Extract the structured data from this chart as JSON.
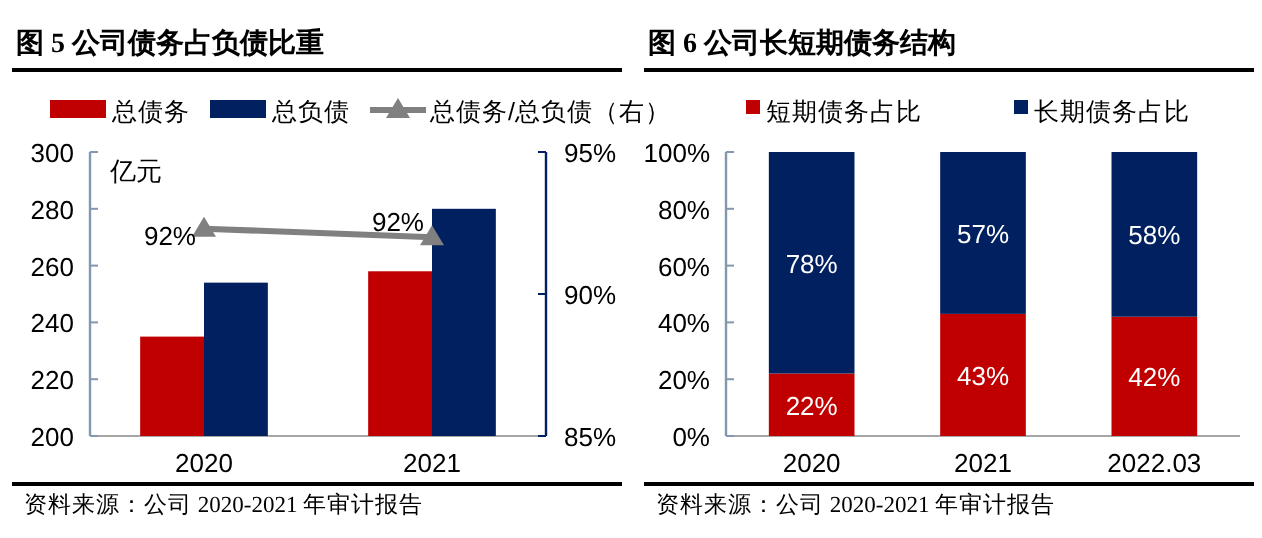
{
  "chart_data": [
    {
      "type": "bar",
      "title": "图 5 公司债务占负债比重",
      "ylabel": "亿元",
      "categories": [
        "2020",
        "2021"
      ],
      "series": [
        {
          "name": "总债务",
          "color": "#c00000",
          "values": [
            235,
            258
          ]
        },
        {
          "name": "总负债",
          "color": "#002060",
          "values": [
            254,
            280
          ]
        },
        {
          "name": "总债务/总负债（右）",
          "type": "line",
          "axis": "y2",
          "color": "#808080",
          "marker": "triangle",
          "values": [
            92.3,
            92.0
          ],
          "value_labels": [
            "92%",
            "92%"
          ]
        }
      ],
      "ylim": [
        200,
        300
      ],
      "yticks": [
        200,
        220,
        240,
        260,
        280,
        300
      ],
      "y2lim": [
        85,
        95
      ],
      "y2ticks": [
        {
          "value": 85,
          "label": "85%"
        },
        {
          "value": 90,
          "label": "90%"
        },
        {
          "value": 95,
          "label": "95%"
        }
      ],
      "legend": "top",
      "annotations": [
        "资料来源：公司 2020-2021 年审计报告"
      ]
    },
    {
      "type": "bar",
      "stacked": true,
      "title": "图 6 公司长短期债务结构",
      "categories": [
        "2020",
        "2021",
        "2022.03"
      ],
      "series": [
        {
          "name": "短期债务占比",
          "color": "#c00000",
          "values": [
            22,
            43,
            42
          ],
          "value_labels": [
            "22%",
            "43%",
            "42%"
          ]
        },
        {
          "name": "长期债务占比",
          "color": "#002060",
          "values": [
            78,
            57,
            58
          ],
          "value_labels": [
            "78%",
            "57%",
            "58%"
          ]
        }
      ],
      "ylim": [
        0,
        100
      ],
      "yticks": [
        {
          "value": 0,
          "label": "0%"
        },
        {
          "value": 20,
          "label": "20%"
        },
        {
          "value": 40,
          "label": "40%"
        },
        {
          "value": 60,
          "label": "60%"
        },
        {
          "value": 80,
          "label": "80%"
        },
        {
          "value": 100,
          "label": "100%"
        }
      ],
      "legend": "top",
      "annotations": [
        "资料来源：公司 2020-2021 年审计报告"
      ]
    }
  ]
}
